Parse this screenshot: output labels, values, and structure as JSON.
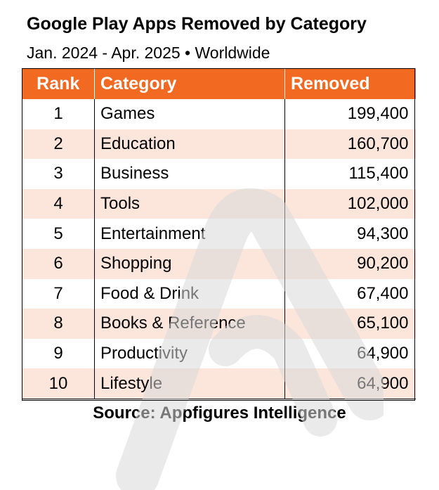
{
  "chart_data": {
    "type": "table",
    "title": "Google Play Apps Removed by Category",
    "subtitle": "Jan. 2024 - Apr. 2025 • Worldwide",
    "columns": [
      "Rank",
      "Category",
      "Removed"
    ],
    "rows": [
      {
        "rank": "1",
        "category": "Games",
        "removed": "199,400"
      },
      {
        "rank": "2",
        "category": "Education",
        "removed": "160,700"
      },
      {
        "rank": "3",
        "category": "Business",
        "removed": "115,400"
      },
      {
        "rank": "4",
        "category": "Tools",
        "removed": "102,000"
      },
      {
        "rank": "5",
        "category": "Entertainment",
        "removed": "94,300"
      },
      {
        "rank": "6",
        "category": "Shopping",
        "removed": "90,200"
      },
      {
        "rank": "7",
        "category": "Food & Drink",
        "removed": "67,400"
      },
      {
        "rank": "8",
        "category": "Books & Reference",
        "removed": "65,100"
      },
      {
        "rank": "9",
        "category": "Productivity",
        "removed": "64,900"
      },
      {
        "rank": "10",
        "category": "Lifestyle",
        "removed": "64,900"
      }
    ],
    "source": "Source: Appfigures Intelligence"
  },
  "colors": {
    "header_bg": "#f26a21",
    "header_text": "#ffffff",
    "row_alt_bg": "#fce2d6",
    "watermark": "#d9d9d9"
  },
  "watermark_icon": "appfigures-logo-icon"
}
